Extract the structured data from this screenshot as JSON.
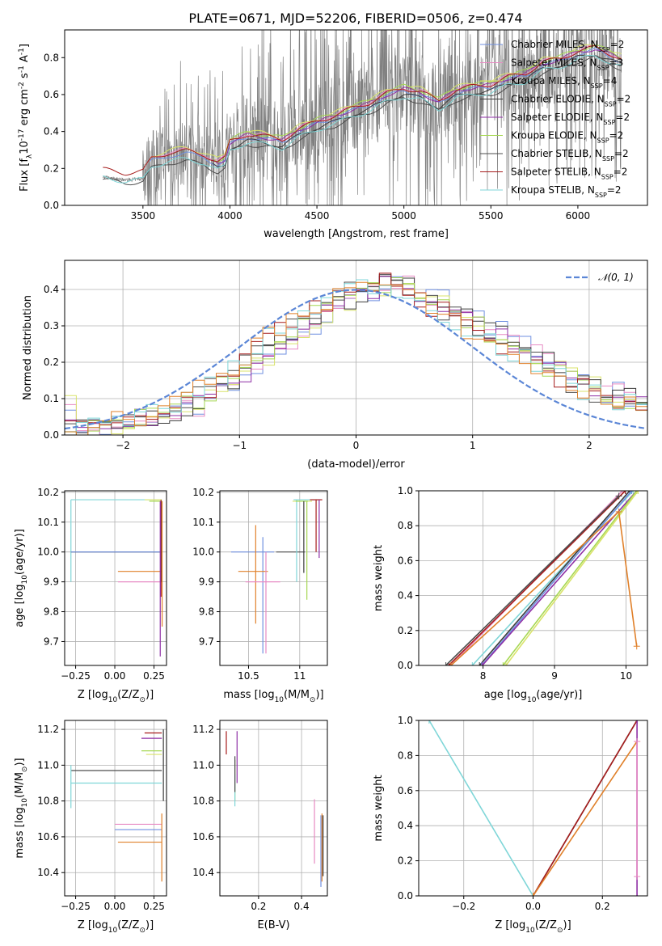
{
  "figure": {
    "title": "PLATE=0671, MJD=52206, FIBERID=0506, z=0.474"
  },
  "colors": {
    "Chabrier MILES": "#6f8fe0",
    "Salpeter MILES": "#e78ac3",
    "Kroupa MILES": "#d9e36b",
    "Chabrier ELODIE": "#3c3c3c",
    "Salpeter ELODIE": "#8e2fa5",
    "Kroupa ELODIE": "#a6d854",
    "Chabrier STELIB": "#4d4d4d",
    "Salpeter STELIB": "#a61c1c",
    "Kroupa STELIB": "#7fd6d8",
    "orange": "#e0802a",
    "normal": "#5b86d6",
    "data": "#808080"
  },
  "chart_data": [
    {
      "id": "spectrum",
      "type": "line",
      "title": "PLATE=0671, MJD=52206, FIBERID=0506, z=0.474",
      "xlabel": "wavelength [Angstrom, rest frame]",
      "ylabel": "Flux [f",
      "ylabel_sub": "λ",
      "ylabel_rest": "10",
      "ylabel_exp": "-17",
      "ylabel_unit": " erg cm",
      "ylabel_unit_exp1": "-2",
      "ylabel_s": " s",
      "ylabel_s_exp": "-1",
      "ylabel_A": " A",
      "ylabel_A_exp": "-1",
      "ylabel_close": "]",
      "xlim": [
        3050,
        6400
      ],
      "ylim": [
        0,
        0.95
      ],
      "xticks": [
        3500,
        4000,
        4500,
        5000,
        5500,
        6000
      ],
      "yticks": [
        0.0,
        0.2,
        0.4,
        0.6,
        0.8
      ],
      "grid": false,
      "legend_position": "top-right",
      "legend": [
        {
          "name": "Chabrier MILES, N",
          "sub": "SSP",
          "rest": "=2"
        },
        {
          "name": "Salpeter MILES, N",
          "sub": "SSP",
          "rest": "=3"
        },
        {
          "name": "Kroupa MILES, N",
          "sub": "SSP",
          "rest": "=4"
        },
        {
          "name": "Chabrier ELODIE, N",
          "sub": "SSP",
          "rest": "=2"
        },
        {
          "name": "Salpeter ELODIE, N",
          "sub": "SSP",
          "rest": "=2"
        },
        {
          "name": "Kroupa ELODIE, N",
          "sub": "SSP",
          "rest": "=2"
        },
        {
          "name": "Chabrier STELIB, N",
          "sub": "SSP",
          "rest": "=2"
        },
        {
          "name": "Salpeter STELIB, N",
          "sub": "SSP",
          "rest": "=2"
        },
        {
          "name": "Kroupa STELIB, N",
          "sub": "SSP",
          "rest": "=2"
        }
      ],
      "model_start": {
        "MILES": 3540,
        "ELODIE": 3900,
        "STELIB": 3270
      },
      "continuum": [
        [
          3270,
          0.18
        ],
        [
          3400,
          0.16
        ],
        [
          3500,
          0.17
        ],
        [
          3550,
          0.24
        ],
        [
          3650,
          0.27
        ],
        [
          3750,
          0.28
        ],
        [
          3850,
          0.26
        ],
        [
          3930,
          0.22
        ],
        [
          3970,
          0.24
        ],
        [
          4000,
          0.33
        ],
        [
          4100,
          0.37
        ],
        [
          4200,
          0.36
        ],
        [
          4300,
          0.34
        ],
        [
          4400,
          0.4
        ],
        [
          4500,
          0.44
        ],
        [
          4600,
          0.47
        ],
        [
          4700,
          0.51
        ],
        [
          4800,
          0.54
        ],
        [
          4900,
          0.59
        ],
        [
          5000,
          0.62
        ],
        [
          5100,
          0.6
        ],
        [
          5200,
          0.55
        ],
        [
          5300,
          0.61
        ],
        [
          5400,
          0.63
        ],
        [
          5500,
          0.64
        ],
        [
          5600,
          0.68
        ],
        [
          5700,
          0.7
        ],
        [
          5800,
          0.76
        ],
        [
          5900,
          0.78
        ],
        [
          6000,
          0.82
        ],
        [
          6100,
          0.84
        ],
        [
          6200,
          0.8
        ],
        [
          6250,
          0.78
        ]
      ]
    },
    {
      "id": "residuals",
      "type": "line",
      "xlabel": "(data-model)/error",
      "ylabel": "Normed distribution",
      "xlim": [
        -2.5,
        2.5
      ],
      "ylim": [
        0,
        0.48
      ],
      "xticks": [
        -2,
        -1,
        0,
        1,
        2
      ],
      "xtick_labels": [
        "−2",
        "−1",
        "0",
        "1",
        "2"
      ],
      "yticks": [
        0.0,
        0.1,
        0.2,
        0.3,
        0.4
      ],
      "grid": true,
      "legend_position": "top-right",
      "normal_label": "𝒩(0, 1)",
      "bin_width": 0.1,
      "hist_envelope": [
        [
          -2.5,
          0.01
        ],
        [
          -2.0,
          0.03
        ],
        [
          -1.5,
          0.07
        ],
        [
          -1.0,
          0.16
        ],
        [
          -0.5,
          0.3
        ],
        [
          0.0,
          0.39
        ],
        [
          0.3,
          0.42
        ],
        [
          0.6,
          0.38
        ],
        [
          1.0,
          0.31
        ],
        [
          1.5,
          0.22
        ],
        [
          2.0,
          0.13
        ],
        [
          2.5,
          0.08
        ]
      ]
    },
    {
      "id": "age-vs-Z",
      "type": "scatter",
      "xlabel": "Z [log",
      "xlabel_sub": "10",
      "xlabel_rest": "(Z/Z",
      "xlabel_sub2": "⊙",
      "xlabel_close": ")]",
      "ylabel": "age  [log",
      "ylabel_sub": "10",
      "ylabel_rest": "(age/yr)]",
      "xlim": [
        -0.32,
        0.33
      ],
      "ylim": [
        9.62,
        10.205
      ],
      "xticks": [
        -0.25,
        0.0,
        0.25
      ],
      "xtick_labels": [
        "−0.25",
        "0.00",
        "0.25"
      ],
      "yticks": [
        9.7,
        9.8,
        9.9,
        10.0,
        10.1,
        10.2
      ],
      "grid": true
    },
    {
      "id": "age-vs-mass",
      "type": "scatter",
      "xlabel": "mass [log",
      "xlabel_sub": "10",
      "xlabel_rest": "(M/M",
      "xlabel_sub2": "⊙",
      "xlabel_close": ")]",
      "xlim": [
        10.22,
        11.27
      ],
      "ylim": [
        9.62,
        10.205
      ],
      "xticks": [
        10.5,
        11.0
      ],
      "yticks": [
        9.7,
        9.8,
        9.9,
        10.0,
        10.1,
        10.2
      ],
      "grid": true
    },
    {
      "id": "mass-weight-vs-age",
      "type": "line",
      "xlabel": "age  [log",
      "xlabel_sub": "10",
      "xlabel_rest": "(age/yr)]",
      "ylabel": "mass weight",
      "xlim": [
        7.1,
        10.3
      ],
      "ylim": [
        0,
        1
      ],
      "xticks": [
        8,
        9,
        10
      ],
      "yticks": [
        0.0,
        0.2,
        0.4,
        0.6,
        0.8,
        1.0
      ],
      "grid": true
    },
    {
      "id": "mass-vs-Z",
      "type": "scatter",
      "xlabel": "Z [log",
      "xlabel_sub": "10",
      "xlabel_rest": "(Z/Z",
      "xlabel_sub2": "⊙",
      "xlabel_close": ")]",
      "ylabel": "mass [log",
      "ylabel_sub": "10",
      "ylabel_rest": "(M/M",
      "ylabel_sub2": "⊙",
      "ylabel_close": ")]",
      "xlim": [
        -0.32,
        0.33
      ],
      "ylim": [
        10.27,
        11.25
      ],
      "xticks": [
        -0.25,
        0.0,
        0.25
      ],
      "xtick_labels": [
        "−0.25",
        "0.00",
        "0.25"
      ],
      "yticks": [
        10.4,
        10.6,
        10.8,
        11.0,
        11.2
      ],
      "grid": true
    },
    {
      "id": "mass-vs-EBV",
      "type": "scatter",
      "xlabel": "E(B-V)",
      "xlim": [
        0.02,
        0.52
      ],
      "ylim": [
        10.27,
        11.25
      ],
      "xticks": [
        0.2,
        0.4
      ],
      "yticks": [
        10.4,
        10.6,
        10.8,
        11.0,
        11.2
      ],
      "grid": true
    },
    {
      "id": "mass-weight-vs-Z",
      "type": "line",
      "xlabel": "Z [log",
      "xlabel_sub": "10",
      "xlabel_rest": "(Z/Z",
      "xlabel_sub2": "⊙",
      "xlabel_close": ")]",
      "ylabel": "mass weight",
      "xlim": [
        -0.33,
        0.33
      ],
      "ylim": [
        0,
        1
      ],
      "xticks": [
        -0.2,
        0.0,
        0.2
      ],
      "xtick_labels": [
        "−0.2",
        "0.0",
        "0.2"
      ],
      "yticks": [
        0.0,
        0.2,
        0.4,
        0.6,
        0.8,
        1.0
      ],
      "grid": true
    }
  ],
  "ssp_fits": {
    "age_vs_Z": [
      {
        "model": "Kroupa STELIB",
        "hline": [
          -0.28,
          0.3,
          10.175
        ],
        "vline": [
          -0.28,
          9.9,
          10.175
        ]
      },
      {
        "model": "Chabrier STELIB",
        "hline": [
          -0.28,
          0.3,
          10.0
        ]
      },
      {
        "model": "Chabrier MILES",
        "hline": [
          -0.28,
          0.3,
          10.0
        ]
      },
      {
        "model": "orange",
        "hline": [
          0.02,
          0.3,
          9.935
        ]
      },
      {
        "model": "Salpeter MILES",
        "hline": [
          0.02,
          0.3,
          9.9
        ]
      },
      {
        "model": "Kroupa MILES",
        "hline": [
          0.19,
          0.3,
          10.175
        ]
      },
      {
        "model": "Kroupa ELODIE",
        "hline": [
          0.22,
          0.3,
          10.17
        ]
      },
      {
        "model": "Salpeter STELIB",
        "vline": [
          0.295,
          9.85,
          10.175
        ]
      },
      {
        "model": "Salpeter ELODIE",
        "vline": [
          0.29,
          9.65,
          10.17
        ]
      },
      {
        "model": "Chabrier ELODIE",
        "vline": [
          0.3,
          9.9,
          10.17
        ]
      },
      {
        "model": "orange",
        "vline": [
          0.302,
          9.75,
          10.17
        ]
      }
    ],
    "age_vs_mass": [
      {
        "model": "Chabrier MILES",
        "hline": [
          10.33,
          10.75,
          10.0
        ],
        "vline": [
          10.64,
          9.66,
          10.05
        ]
      },
      {
        "model": "orange",
        "hline": [
          10.4,
          10.69,
          9.935
        ],
        "vline": [
          10.57,
          9.76,
          10.09
        ]
      },
      {
        "model": "Salpeter MILES",
        "hline": [
          10.47,
          10.81,
          9.9
        ],
        "vline": [
          10.67,
          9.66,
          10.0
        ]
      },
      {
        "model": "Chabrier STELIB",
        "hline": [
          10.77,
          11.05,
          10.0
        ]
      },
      {
        "model": "Kroupa STELIB",
        "hline": [
          10.94,
          11.15,
          10.175
        ],
        "vline": [
          10.97,
          9.9,
          10.175
        ]
      },
      {
        "model": "Kroupa MILES",
        "hline": [
          10.93,
          11.12,
          10.17
        ]
      },
      {
        "model": "Kroupa ELODIE",
        "hline": [
          10.96,
          11.08,
          10.17
        ],
        "vline": [
          11.07,
          9.84,
          10.17
        ]
      },
      {
        "model": "Chabrier ELODIE",
        "vline": [
          11.04,
          9.93,
          10.17
        ]
      },
      {
        "model": "Salpeter STELIB",
        "hline": [
          11.1,
          11.22,
          10.175
        ],
        "vline": [
          11.16,
          10.0,
          10.175
        ]
      },
      {
        "model": "Salpeter ELODIE",
        "vline": [
          11.19,
          9.98,
          10.175
        ]
      }
    ],
    "mass_weight_vs_age": [
      {
        "model": "Kroupa STELIB",
        "points": [
          [
            7.85,
            0
          ],
          [
            10.1,
            1.0
          ]
        ]
      },
      {
        "model": "Chabrier ELODIE",
        "points": [
          [
            7.95,
            0
          ],
          [
            10.05,
            1.0
          ]
        ]
      },
      {
        "model": "Chabrier MILES",
        "points": [
          [
            7.98,
            0
          ],
          [
            10.08,
            1.0
          ]
        ]
      },
      {
        "model": "Salpeter ELODIE",
        "points": [
          [
            7.99,
            0
          ],
          [
            10.15,
            1.0
          ]
        ]
      },
      {
        "model": "Kroupa ELODIE",
        "points": [
          [
            8.28,
            0
          ],
          [
            10.15,
            1.0
          ]
        ]
      },
      {
        "model": "Kroupa MILES",
        "points": [
          [
            8.32,
            0
          ],
          [
            10.17,
            1.0
          ]
        ]
      },
      {
        "model": "Salpeter MILES",
        "points": [
          [
            7.55,
            0
          ],
          [
            9.95,
            1.0
          ]
        ]
      },
      {
        "model": "Salpeter STELIB",
        "points": [
          [
            7.52,
            0
          ],
          [
            9.99,
            1.0
          ]
        ]
      },
      {
        "model": "Chabrier STELIB",
        "points": [
          [
            7.48,
            0
          ],
          [
            9.9,
            0.97
          ]
        ]
      },
      {
        "model": "orange",
        "points": [
          [
            7.55,
            0
          ],
          [
            9.9,
            0.88
          ],
          [
            10.15,
            0.11
          ]
        ]
      }
    ],
    "mass_vs_Z": [
      {
        "model": "Salpeter STELIB",
        "hline": [
          0.19,
          0.3,
          11.18
        ]
      },
      {
        "model": "Salpeter ELODIE",
        "hline": [
          0.17,
          0.3,
          11.15
        ]
      },
      {
        "model": "Kroupa MILES",
        "hline": [
          0.2,
          0.3,
          11.06
        ]
      },
      {
        "model": "Kroupa ELODIE",
        "hline": [
          0.17,
          0.3,
          11.08
        ]
      },
      {
        "model": "Chabrier STELIB",
        "hline": [
          -0.28,
          0.3,
          10.97
        ]
      },
      {
        "model": "Kroupa STELIB",
        "hline": [
          -0.28,
          0.3,
          10.9
        ],
        "vline": [
          -0.28,
          10.76,
          11.0
        ]
      },
      {
        "model": "Salpeter MILES",
        "hline": [
          0.0,
          0.3,
          10.67
        ]
      },
      {
        "model": "Chabrier MILES",
        "hline": [
          0.0,
          0.3,
          10.64
        ]
      },
      {
        "model": "orange",
        "hline": [
          0.02,
          0.3,
          10.57
        ],
        "vline": [
          0.3,
          10.35,
          10.73
        ]
      },
      {
        "model": "Chabrier ELODIE",
        "vline": [
          0.31,
          10.8,
          11.2
        ]
      }
    ],
    "mass_vs_EBV": [
      {
        "model": "Salpeter STELIB",
        "vline": [
          0.05,
          11.06,
          11.19
        ]
      },
      {
        "model": "Salpeter ELODIE",
        "vline": [
          0.1,
          10.9,
          11.19
        ]
      },
      {
        "model": "Kroupa ELODIE",
        "vline": [
          0.09,
          10.8,
          11.03
        ]
      },
      {
        "model": "Kroupa STELIB",
        "vline": [
          0.09,
          10.77,
          10.95
        ]
      },
      {
        "model": "Chabrier STELIB",
        "vline": [
          0.09,
          10.85,
          11.05
        ]
      },
      {
        "model": "Salpeter MILES",
        "vline": [
          0.46,
          10.45,
          10.81
        ]
      },
      {
        "model": "Chabrier MILES",
        "vline": [
          0.49,
          10.32,
          10.72
        ]
      },
      {
        "model": "orange",
        "vline": [
          0.495,
          10.35,
          10.73
        ]
      },
      {
        "model": "Chabrier ELODIE",
        "vline": [
          0.5,
          10.38,
          10.72
        ]
      }
    ],
    "mass_weight_vs_Z": [
      {
        "model": "Kroupa STELIB",
        "points": [
          [
            -0.3,
            1.0
          ],
          [
            0.0,
            0.0
          ]
        ]
      },
      {
        "model": "Chabrier STELIB",
        "points": [
          [
            0.0,
            0.0
          ],
          [
            0.3,
            1.0
          ]
        ]
      },
      {
        "model": "Salpeter STELIB",
        "points": [
          [
            0.0,
            0.0
          ],
          [
            0.3,
            1.0
          ]
        ]
      },
      {
        "model": "orange",
        "points": [
          [
            0.0,
            0.0
          ],
          [
            0.3,
            0.88
          ]
        ]
      },
      {
        "model": "Salpeter ELODIE",
        "points": [
          [
            0.3,
            0.0
          ],
          [
            0.3,
            1.0
          ]
        ]
      },
      {
        "model": "Salpeter MILES",
        "points": [
          [
            0.3,
            0.11
          ],
          [
            0.3,
            0.88
          ]
        ]
      }
    ]
  }
}
